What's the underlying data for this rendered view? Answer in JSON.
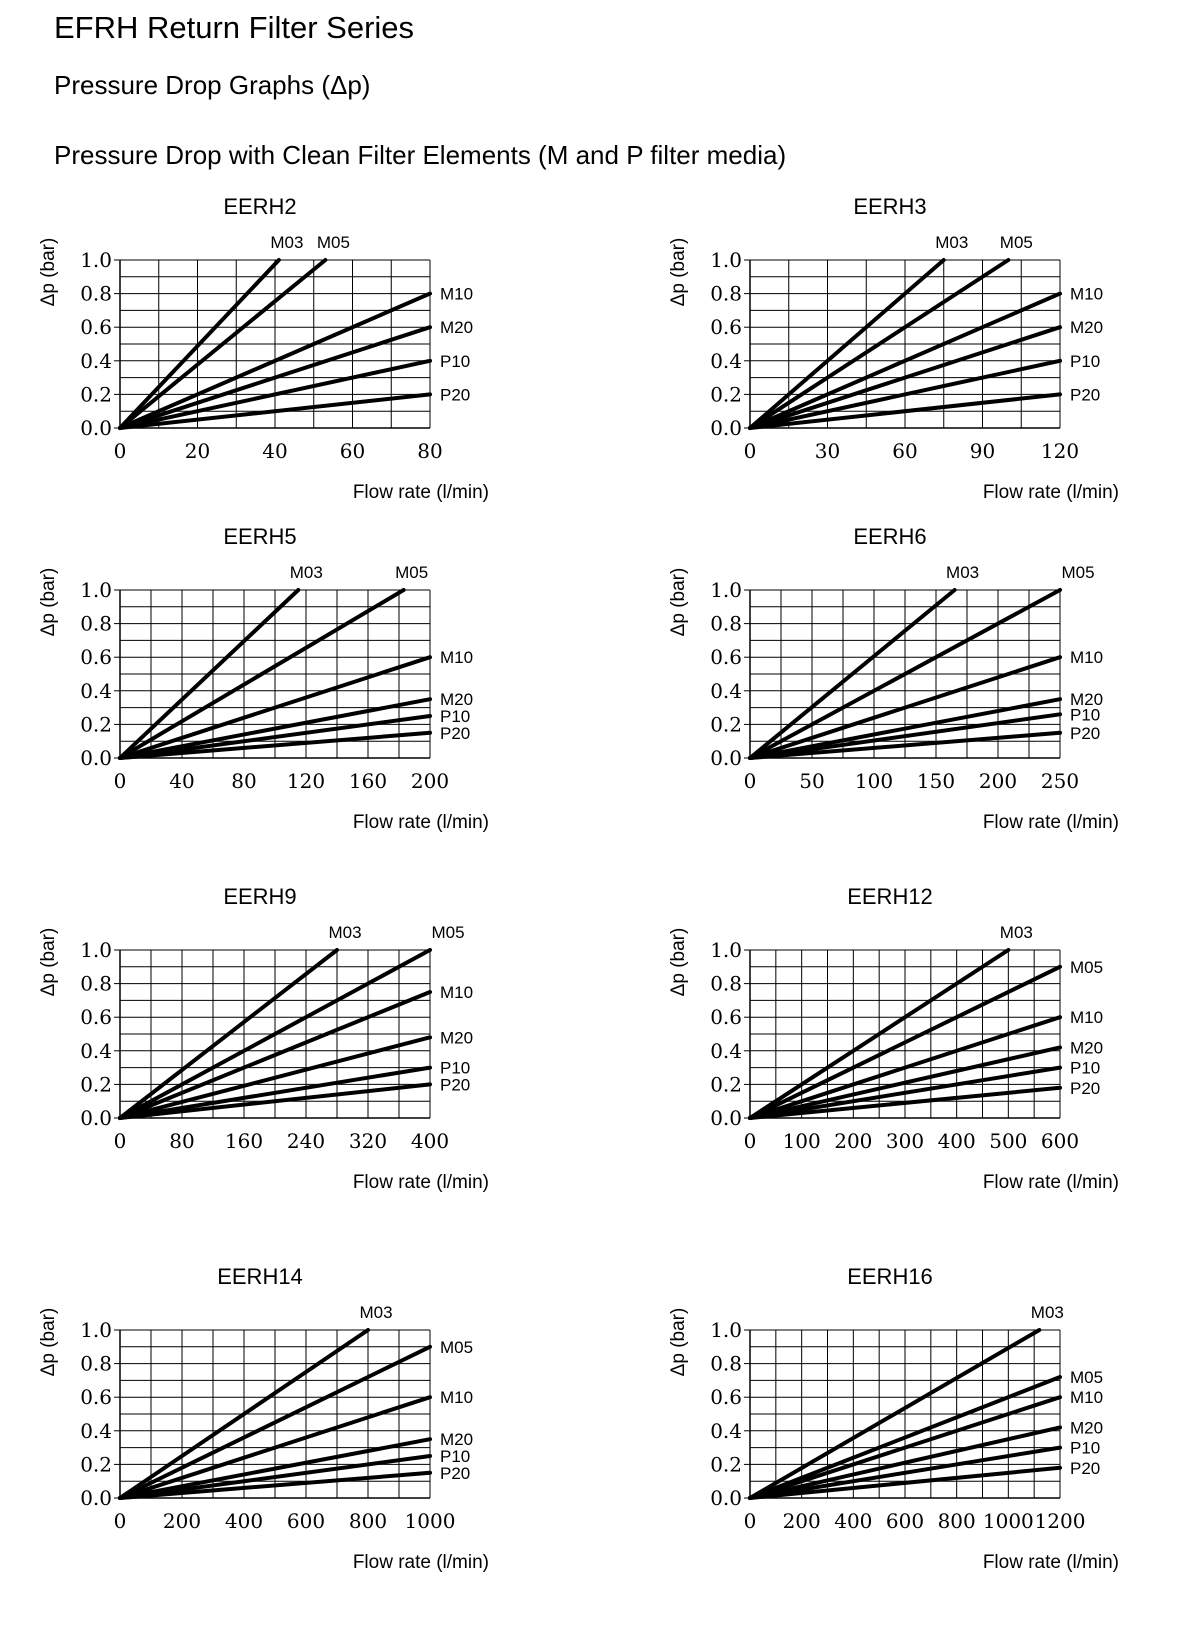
{
  "page": {
    "title": "EFRH Return Filter Series",
    "subtitle": "Pressure Drop Graphs (Δp)",
    "heading": "Pressure Drop with Clean Filter Elements (M and P filter media)"
  },
  "chart_data": [
    {
      "type": "line",
      "title": "EERH2",
      "xlabel": "Flow rate (l/min)",
      "ylabel": "Δp (bar)",
      "xlim": [
        0,
        80
      ],
      "ylim": [
        0,
        1.0
      ],
      "xticks": [
        "0",
        "20",
        "40",
        "60",
        "80"
      ],
      "yticks": [
        "0.0",
        "0.2",
        "0.4",
        "0.6",
        "0.8",
        "1.0"
      ],
      "series": [
        {
          "name": "M03",
          "x": [
            0,
            41
          ],
          "y": [
            0,
            1.0
          ]
        },
        {
          "name": "M05",
          "x": [
            0,
            53
          ],
          "y": [
            0,
            1.0
          ]
        },
        {
          "name": "M10",
          "x": [
            0,
            80
          ],
          "y": [
            0,
            0.8
          ]
        },
        {
          "name": "M20",
          "x": [
            0,
            80
          ],
          "y": [
            0,
            0.6
          ]
        },
        {
          "name": "P10",
          "x": [
            0,
            80
          ],
          "y": [
            0,
            0.4
          ]
        },
        {
          "name": "P20",
          "x": [
            0,
            80
          ],
          "y": [
            0,
            0.2
          ]
        }
      ]
    },
    {
      "type": "line",
      "title": "EERH3",
      "xlabel": "Flow rate (l/min)",
      "ylabel": "Δp (bar)",
      "xlim": [
        0,
        120
      ],
      "ylim": [
        0,
        1.0
      ],
      "xticks": [
        "0",
        "30",
        "60",
        "90",
        "120"
      ],
      "yticks": [
        "0.0",
        "0.2",
        "0.4",
        "0.6",
        "0.8",
        "1.0"
      ],
      "series": [
        {
          "name": "M03",
          "x": [
            0,
            75
          ],
          "y": [
            0,
            1.0
          ]
        },
        {
          "name": "M05",
          "x": [
            0,
            100
          ],
          "y": [
            0,
            1.0
          ]
        },
        {
          "name": "M10",
          "x": [
            0,
            120
          ],
          "y": [
            0,
            0.8
          ]
        },
        {
          "name": "M20",
          "x": [
            0,
            120
          ],
          "y": [
            0,
            0.6
          ]
        },
        {
          "name": "P10",
          "x": [
            0,
            120
          ],
          "y": [
            0,
            0.4
          ]
        },
        {
          "name": "P20",
          "x": [
            0,
            120
          ],
          "y": [
            0,
            0.2
          ]
        }
      ]
    },
    {
      "type": "line",
      "title": "EERH5",
      "xlabel": "Flow rate (l/min)",
      "ylabel": "Δp (bar)",
      "xlim": [
        0,
        200
      ],
      "ylim": [
        0,
        1.0
      ],
      "xticks": [
        "0",
        "40",
        "80",
        "120",
        "160",
        "200"
      ],
      "yticks": [
        "0.0",
        "0.2",
        "0.4",
        "0.6",
        "0.8",
        "1.0"
      ],
      "series": [
        {
          "name": "M03",
          "x": [
            0,
            115
          ],
          "y": [
            0,
            1.0
          ]
        },
        {
          "name": "M05",
          "x": [
            0,
            183
          ],
          "y": [
            0,
            1.0
          ]
        },
        {
          "name": "M10",
          "x": [
            0,
            200
          ],
          "y": [
            0,
            0.6
          ]
        },
        {
          "name": "M20",
          "x": [
            0,
            200
          ],
          "y": [
            0,
            0.35
          ]
        },
        {
          "name": "P10",
          "x": [
            0,
            200
          ],
          "y": [
            0,
            0.25
          ]
        },
        {
          "name": "P20",
          "x": [
            0,
            200
          ],
          "y": [
            0,
            0.15
          ]
        }
      ]
    },
    {
      "type": "line",
      "title": "EERH6",
      "xlabel": "Flow rate (l/min)",
      "ylabel": "Δp (bar)",
      "xlim": [
        0,
        250
      ],
      "ylim": [
        0,
        1.0
      ],
      "xticks": [
        "0",
        "50",
        "100",
        "150",
        "200",
        "250"
      ],
      "yticks": [
        "0.0",
        "0.2",
        "0.4",
        "0.6",
        "0.8",
        "1.0"
      ],
      "series": [
        {
          "name": "M03",
          "x": [
            0,
            165
          ],
          "y": [
            0,
            1.0
          ]
        },
        {
          "name": "M05",
          "x": [
            0,
            250
          ],
          "y": [
            0,
            1.0
          ]
        },
        {
          "name": "M10",
          "x": [
            0,
            250
          ],
          "y": [
            0,
            0.6
          ]
        },
        {
          "name": "M20",
          "x": [
            0,
            250
          ],
          "y": [
            0,
            0.35
          ]
        },
        {
          "name": "P10",
          "x": [
            0,
            250
          ],
          "y": [
            0,
            0.26
          ]
        },
        {
          "name": "P20",
          "x": [
            0,
            250
          ],
          "y": [
            0,
            0.15
          ]
        }
      ]
    },
    {
      "type": "line",
      "title": "EERH9",
      "xlabel": "Flow rate (l/min)",
      "ylabel": "Δp (bar)",
      "xlim": [
        0,
        400
      ],
      "ylim": [
        0,
        1.0
      ],
      "xticks": [
        "0",
        "80",
        "160",
        "240",
        "320",
        "400"
      ],
      "yticks": [
        "0.0",
        "0.2",
        "0.4",
        "0.6",
        "0.8",
        "1.0"
      ],
      "series": [
        {
          "name": "M03",
          "x": [
            0,
            280
          ],
          "y": [
            0,
            1.0
          ]
        },
        {
          "name": "M05",
          "x": [
            0,
            400
          ],
          "y": [
            0,
            1.0
          ]
        },
        {
          "name": "M10",
          "x": [
            0,
            400
          ],
          "y": [
            0,
            0.75
          ]
        },
        {
          "name": "M20",
          "x": [
            0,
            400
          ],
          "y": [
            0,
            0.48
          ]
        },
        {
          "name": "P10",
          "x": [
            0,
            400
          ],
          "y": [
            0,
            0.3
          ]
        },
        {
          "name": "P20",
          "x": [
            0,
            400
          ],
          "y": [
            0,
            0.2
          ]
        }
      ]
    },
    {
      "type": "line",
      "title": "EERH12",
      "xlabel": "Flow rate (l/min)",
      "ylabel": "Δp (bar)",
      "xlim": [
        0,
        600
      ],
      "ylim": [
        0,
        1.0
      ],
      "xticks": [
        "0",
        "100",
        "200",
        "300",
        "400",
        "500",
        "600"
      ],
      "yticks": [
        "0.0",
        "0.2",
        "0.4",
        "0.6",
        "0.8",
        "1.0"
      ],
      "series": [
        {
          "name": "M03",
          "x": [
            0,
            500
          ],
          "y": [
            0,
            1.0
          ]
        },
        {
          "name": "M05",
          "x": [
            0,
            600
          ],
          "y": [
            0,
            0.9
          ]
        },
        {
          "name": "M10",
          "x": [
            0,
            600
          ],
          "y": [
            0,
            0.6
          ]
        },
        {
          "name": "M20",
          "x": [
            0,
            600
          ],
          "y": [
            0,
            0.42
          ]
        },
        {
          "name": "P10",
          "x": [
            0,
            600
          ],
          "y": [
            0,
            0.3
          ]
        },
        {
          "name": "P20",
          "x": [
            0,
            600
          ],
          "y": [
            0,
            0.18
          ]
        }
      ]
    },
    {
      "type": "line",
      "title": "EERH14",
      "xlabel": "Flow rate (l/min)",
      "ylabel": "Δp (bar)",
      "xlim": [
        0,
        1000
      ],
      "ylim": [
        0,
        1.0
      ],
      "xticks": [
        "0",
        "200",
        "400",
        "600",
        "800",
        "1000"
      ],
      "yticks": [
        "0.0",
        "0.2",
        "0.4",
        "0.6",
        "0.8",
        "1.0"
      ],
      "series": [
        {
          "name": "M03",
          "x": [
            0,
            800
          ],
          "y": [
            0,
            1.0
          ]
        },
        {
          "name": "M05",
          "x": [
            0,
            1000
          ],
          "y": [
            0,
            0.9
          ]
        },
        {
          "name": "M10",
          "x": [
            0,
            1000
          ],
          "y": [
            0,
            0.6
          ]
        },
        {
          "name": "M20",
          "x": [
            0,
            1000
          ],
          "y": [
            0,
            0.35
          ]
        },
        {
          "name": "P10",
          "x": [
            0,
            1000
          ],
          "y": [
            0,
            0.25
          ]
        },
        {
          "name": "P20",
          "x": [
            0,
            1000
          ],
          "y": [
            0,
            0.15
          ]
        }
      ]
    },
    {
      "type": "line",
      "title": "EERH16",
      "xlabel": "Flow rate (l/min)",
      "ylabel": "Δp (bar)",
      "xlim": [
        0,
        1200
      ],
      "ylim": [
        0,
        1.0
      ],
      "xticks": [
        "0",
        "200",
        "400",
        "600",
        "800",
        "1000",
        "1200"
      ],
      "yticks": [
        "0.0",
        "0.2",
        "0.4",
        "0.6",
        "0.8",
        "1.0"
      ],
      "series": [
        {
          "name": "M03",
          "x": [
            0,
            1120
          ],
          "y": [
            0,
            1.0
          ]
        },
        {
          "name": "M05",
          "x": [
            0,
            1200
          ],
          "y": [
            0,
            0.72
          ]
        },
        {
          "name": "M10",
          "x": [
            0,
            1200
          ],
          "y": [
            0,
            0.6
          ]
        },
        {
          "name": "M20",
          "x": [
            0,
            1200
          ],
          "y": [
            0,
            0.42
          ]
        },
        {
          "name": "P10",
          "x": [
            0,
            1200
          ],
          "y": [
            0,
            0.3
          ]
        },
        {
          "name": "P20",
          "x": [
            0,
            1200
          ],
          "y": [
            0,
            0.18
          ]
        }
      ]
    }
  ]
}
